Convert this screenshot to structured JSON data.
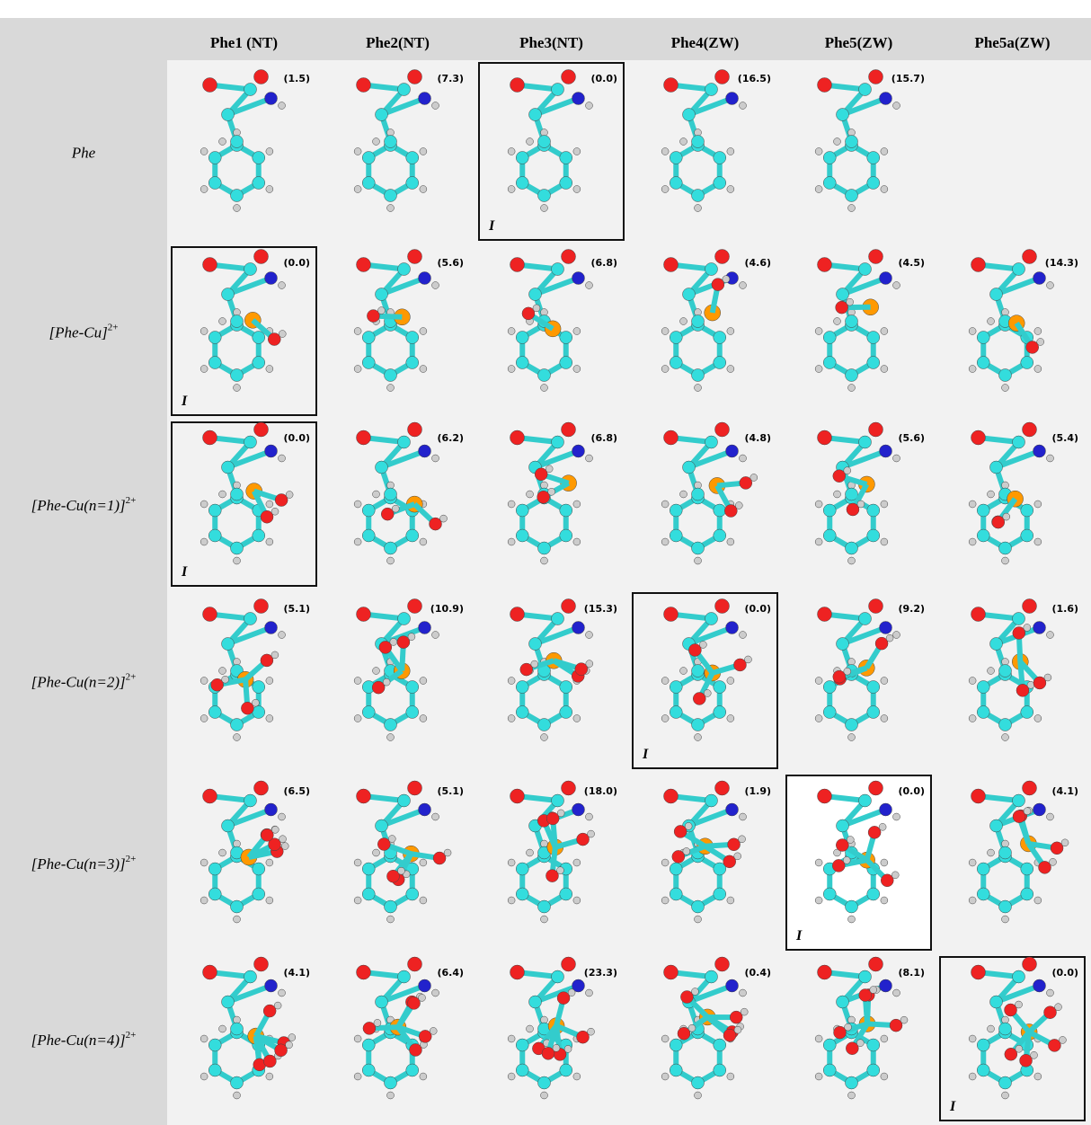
{
  "columns": [
    "Phe1 (NT)",
    "Phe2(NT)",
    "Phe3(NT)",
    "Phe4(ZW)",
    "Phe5(ZW)",
    "Phe5a(ZW)"
  ],
  "rows": [
    {
      "label": {
        "base": "Phe",
        "sup": null
      },
      "cells": [
        {
          "energy": "(1.5)"
        },
        {
          "energy": "(7.3)"
        },
        {
          "energy": "(0.0)",
          "mark": "I"
        },
        {
          "energy": "(16.5)"
        },
        {
          "energy": "(15.7)"
        },
        null
      ]
    },
    {
      "label": {
        "base": "[Phe-Cu]",
        "sup": "2+"
      },
      "cells": [
        {
          "energy": "(0.0)",
          "mark": "I"
        },
        {
          "energy": "(5.6)"
        },
        {
          "energy": "(6.8)"
        },
        {
          "energy": "(4.6)"
        },
        {
          "energy": "(4.5)"
        },
        {
          "energy": "(14.3)"
        }
      ]
    },
    {
      "label": {
        "base": "[Phe-Cu(n=1)]",
        "sup": "2+"
      },
      "cells": [
        {
          "energy": "(0.0)",
          "mark": "I"
        },
        {
          "energy": "(6.2)"
        },
        {
          "energy": "(6.8)"
        },
        {
          "energy": "(4.8)"
        },
        {
          "energy": "(5.6)"
        },
        {
          "energy": "(5.4)"
        }
      ]
    },
    {
      "label": {
        "base": "[Phe-Cu(n=2)]",
        "sup": "2+"
      },
      "cells": [
        {
          "energy": "(5.1)"
        },
        {
          "energy": "(10.9)"
        },
        {
          "energy": "(15.3)"
        },
        {
          "energy": "(0.0)",
          "mark": "I"
        },
        {
          "energy": "(9.2)"
        },
        {
          "energy": "(1.6)"
        }
      ]
    },
    {
      "label": {
        "base": "[Phe-Cu(n=3)]",
        "sup": "2+"
      },
      "cells": [
        {
          "energy": "(6.5)"
        },
        {
          "energy": "(5.1)"
        },
        {
          "energy": "(18.0)"
        },
        {
          "energy": "(1.9)"
        },
        {
          "energy": "(0.0)",
          "mark": "I"
        },
        {
          "energy": "(4.1)"
        }
      ]
    },
    {
      "label": {
        "base": "[Phe-Cu(n=4)]",
        "sup": "2+"
      },
      "cells": [
        {
          "energy": "(4.1)"
        },
        {
          "energy": "(6.4)"
        },
        {
          "energy": "(23.3)"
        },
        {
          "energy": "(0.4)"
        },
        {
          "energy": "(8.1)"
        },
        {
          "energy": "(0.0)",
          "mark": "I"
        }
      ]
    }
  ]
}
